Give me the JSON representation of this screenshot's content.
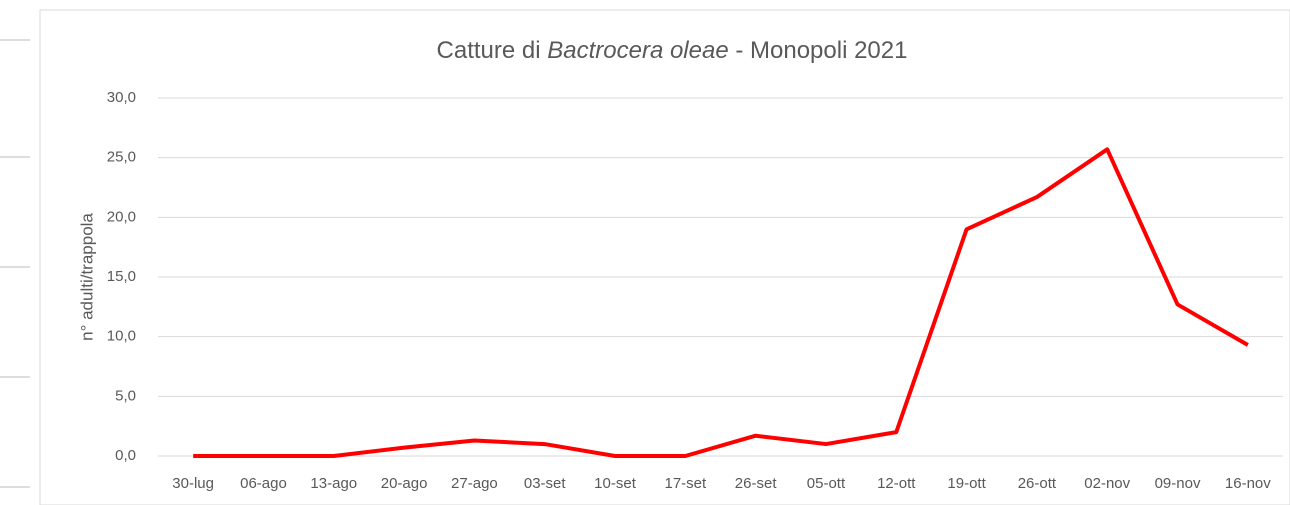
{
  "chart_data": {
    "type": "line",
    "title": [
      "Catture di ",
      "Bactrocera oleae",
      " - Monopoli 2021"
    ],
    "title_italic": [
      false,
      true,
      false
    ],
    "y_label": "n° adulti/trappola",
    "categories": [
      "30-lug",
      "06-ago",
      "13-ago",
      "20-ago",
      "27-ago",
      "03-set",
      "10-set",
      "17-set",
      "26-set",
      "05-ott",
      "12-ott",
      "19-ott",
      "26-ott",
      "02-nov",
      "09-nov",
      "16-nov"
    ],
    "series": [
      {
        "color": "#ff0000",
        "values": [
          0,
          0,
          0,
          0.7,
          1.3,
          1.0,
          0,
          0,
          1.7,
          1.0,
          2.0,
          19.0,
          21.7,
          25.7,
          12.7,
          9.3
        ]
      }
    ],
    "ylim": [
      0,
      30
    ],
    "yticks": [
      {
        "value": 0,
        "label": "0,0"
      },
      {
        "value": 5,
        "label": "5,0"
      },
      {
        "value": 10,
        "label": "10,0"
      },
      {
        "value": 15,
        "label": "15,0"
      },
      {
        "value": 20,
        "label": "20,0"
      },
      {
        "value": 25,
        "label": "25,0"
      },
      {
        "value": 30,
        "label": "30,0"
      }
    ],
    "grid": true
  }
}
